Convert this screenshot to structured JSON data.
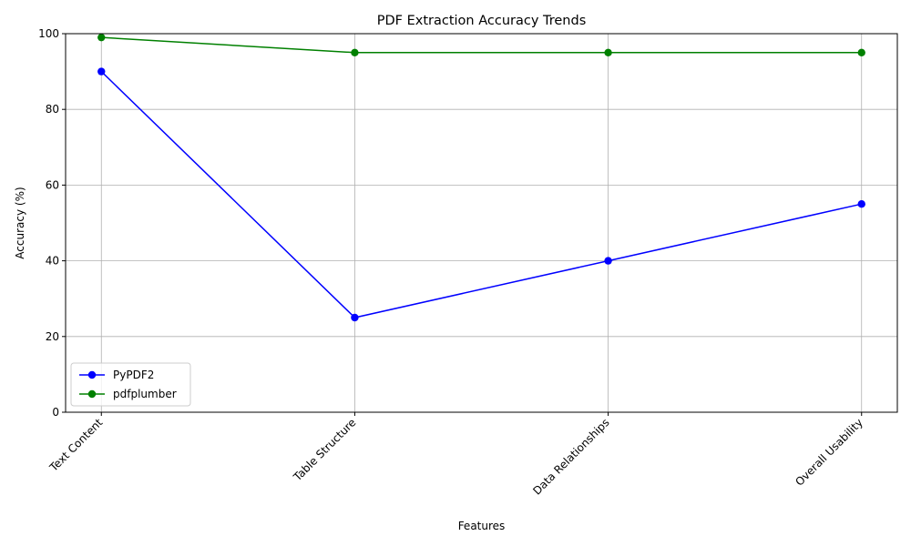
{
  "chart_data": {
    "type": "line",
    "title": "PDF Extraction Accuracy Trends",
    "xlabel": "Features",
    "ylabel": "Accuracy (%)",
    "categories": [
      "Text Content",
      "Table Structure",
      "Data Relationships",
      "Overall Usability"
    ],
    "ylim": [
      0,
      100
    ],
    "yticks": [
      0,
      20,
      40,
      60,
      80,
      100
    ],
    "grid": true,
    "legend_position": "lower-left",
    "series": [
      {
        "name": "PyPDF2",
        "values": [
          90,
          25,
          40,
          55
        ],
        "color": "#0000ff",
        "marker": "circle"
      },
      {
        "name": "pdfplumber",
        "values": [
          99,
          95,
          95,
          95
        ],
        "color": "#008000",
        "marker": "circle"
      }
    ]
  }
}
